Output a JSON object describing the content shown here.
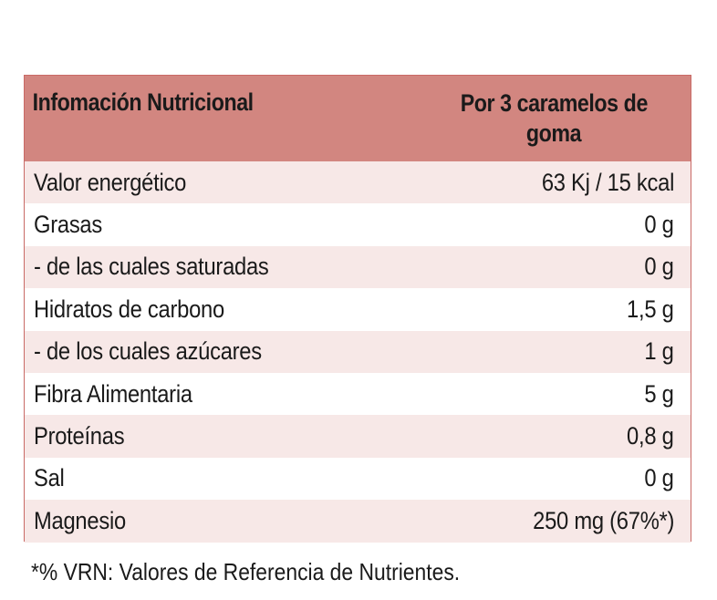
{
  "header": {
    "title": "Infomación Nutricional",
    "column_line1": "Por 3 caramelos de",
    "column_line2": "goma"
  },
  "rows": [
    {
      "label": "Valor energético",
      "value": "63 Kj / 15 kcal"
    },
    {
      "label": "Grasas",
      "value": "0 g"
    },
    {
      "label": " - de las cuales saturadas",
      "value": "0 g"
    },
    {
      "label": "Hidratos de carbono",
      "value": "1,5 g"
    },
    {
      "label": "- de los cuales azúcares",
      "value": "1 g"
    },
    {
      "label": "Fibra Alimentaria",
      "value": "5 g"
    },
    {
      "label": "Proteínas",
      "value": "0,8 g"
    },
    {
      "label": "Sal",
      "value": "0 g"
    },
    {
      "label": "Magnesio",
      "value": "250 mg (67%*)"
    }
  ],
  "footnote": "*% VRN: Valores de Referencia de Nutrientes.",
  "colors": {
    "header_bg": "#d28680",
    "stripe_bg": "#f7e8e7",
    "border": "#c96a66"
  }
}
